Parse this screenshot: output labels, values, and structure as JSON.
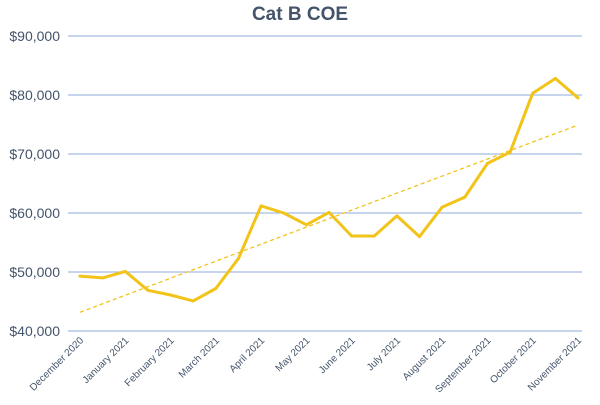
{
  "chart_data": {
    "type": "line",
    "title": "Cat B COE",
    "xlabel": "",
    "ylabel": "",
    "ylim": [
      40000,
      90000
    ],
    "yticks": [
      "$40,000",
      "$50,000",
      "$60,000",
      "$70,000",
      "$80,000",
      "$90,000"
    ],
    "y_tick_values": [
      40000,
      50000,
      60000,
      70000,
      80000,
      90000
    ],
    "categories": [
      "December 2020",
      "",
      "January 2021",
      "",
      "February 2021",
      "",
      "March 2021",
      "",
      "April 2021",
      "",
      "May 2021",
      "",
      "June 2021",
      "",
      "July 2021",
      "",
      "August 2021",
      "",
      "September 2021",
      "",
      "October 2021",
      "",
      "November 2021"
    ],
    "series": [
      {
        "values": [
          49300,
          49000,
          50100,
          46900,
          46100,
          45100,
          47200,
          52300,
          61200,
          60000,
          58000,
          60100,
          56100,
          56100,
          59500,
          56000,
          61000,
          62700,
          68400,
          70300,
          80300,
          82800,
          79500
        ],
        "color": "#f2c318"
      }
    ],
    "trendline": {
      "type": "linear",
      "style": "dashed",
      "color": "#f2c318"
    },
    "grid": true,
    "legend": "none"
  }
}
